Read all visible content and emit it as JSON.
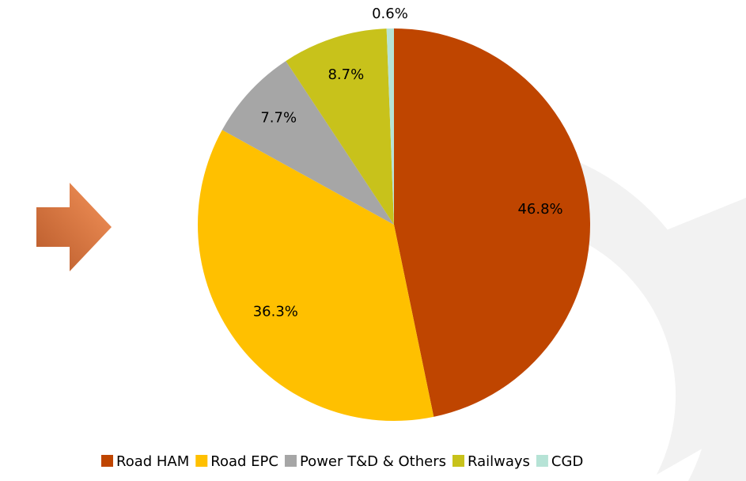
{
  "chart_data": {
    "type": "pie",
    "categories": [
      "Road HAM",
      "Road EPC",
      "Power T&D & Others",
      "Railways",
      "CGD"
    ],
    "values": [
      46.8,
      36.3,
      7.7,
      8.7,
      0.6
    ],
    "value_labels": [
      "46.8%",
      "36.3%",
      "7.7%",
      "8.7%",
      "0.6%"
    ],
    "colors": [
      "#bf4500",
      "#ffc000",
      "#a6a6a6",
      "#c8c21b",
      "#b6e3d6"
    ],
    "legend": "bottom"
  }
}
